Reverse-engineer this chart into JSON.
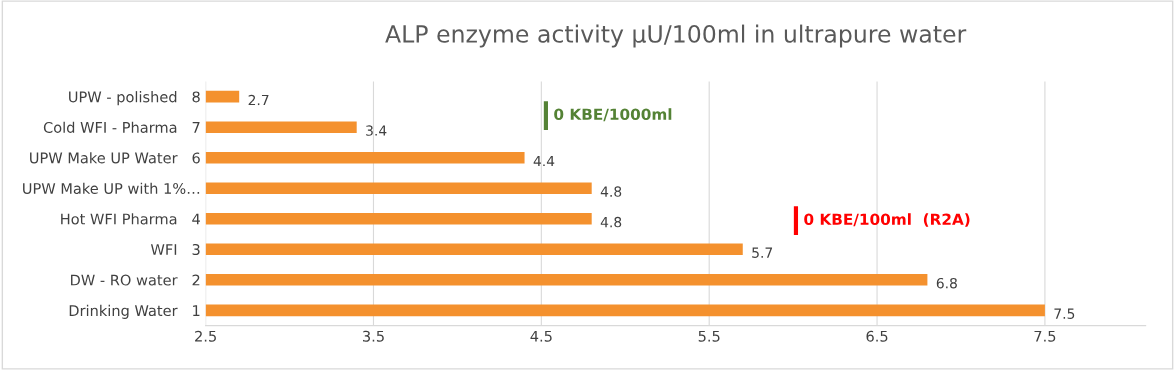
{
  "chart_data": {
    "type": "bar",
    "orientation": "horizontal",
    "title": "ALP enzyme activity µU/100ml in ultrapure water",
    "categories": [
      "UPW - polished   8",
      "Cold WFI - Pharma   7",
      "UPW Make UP Water   6",
      "UPW Make UP with 1%…",
      "Hot WFI Pharma   4",
      "WFI   3",
      "DW - RO water   2",
      "Drinking Water   1"
    ],
    "values": [
      2.7,
      3.4,
      4.4,
      4.8,
      4.8,
      5.7,
      6.8,
      7.5
    ],
    "color": "#f4912e",
    "data_labels": true,
    "xlim": [
      2.5,
      8.1
    ],
    "xticks": [
      2.5,
      3.5,
      4.5,
      5.5,
      6.5,
      7.5
    ],
    "grid": "x",
    "annotations": [
      "0 KBE/1000ml",
      "0 KBE/100ml  (R2A)"
    ]
  }
}
